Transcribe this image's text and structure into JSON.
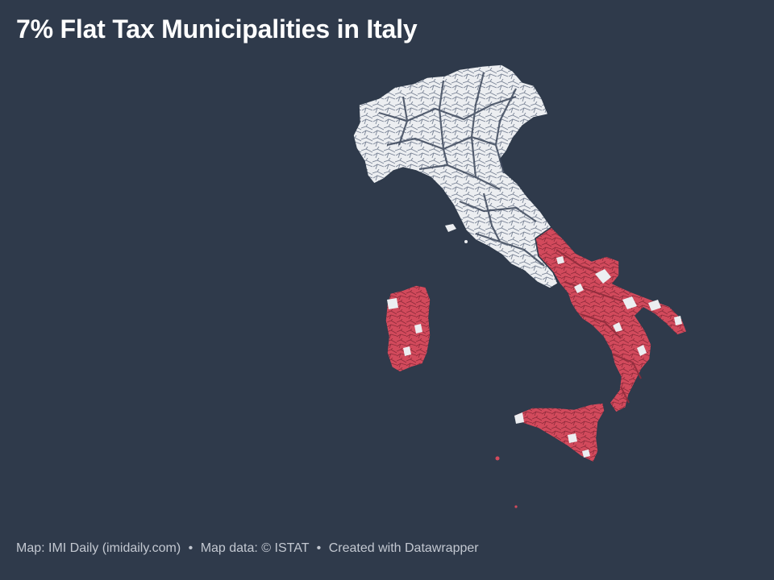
{
  "title": "7% Flat Tax Municipalities in Italy",
  "footer": {
    "map_credit": "Map: IMI Daily (imidaily.com)",
    "separator": "•",
    "data_credit": "Map data: © ISTAT",
    "tool_credit": "Created with Datawrapper"
  },
  "colors": {
    "background": "#2f3a4b",
    "eligible": "#d24a5c",
    "not_eligible": "#eceef1",
    "borders": "#2f3a4b"
  },
  "map": {
    "country": "Italy",
    "regions_highlighted": [
      "south",
      "sicily",
      "sardinia"
    ],
    "regions_other": [
      "north",
      "centre"
    ]
  }
}
